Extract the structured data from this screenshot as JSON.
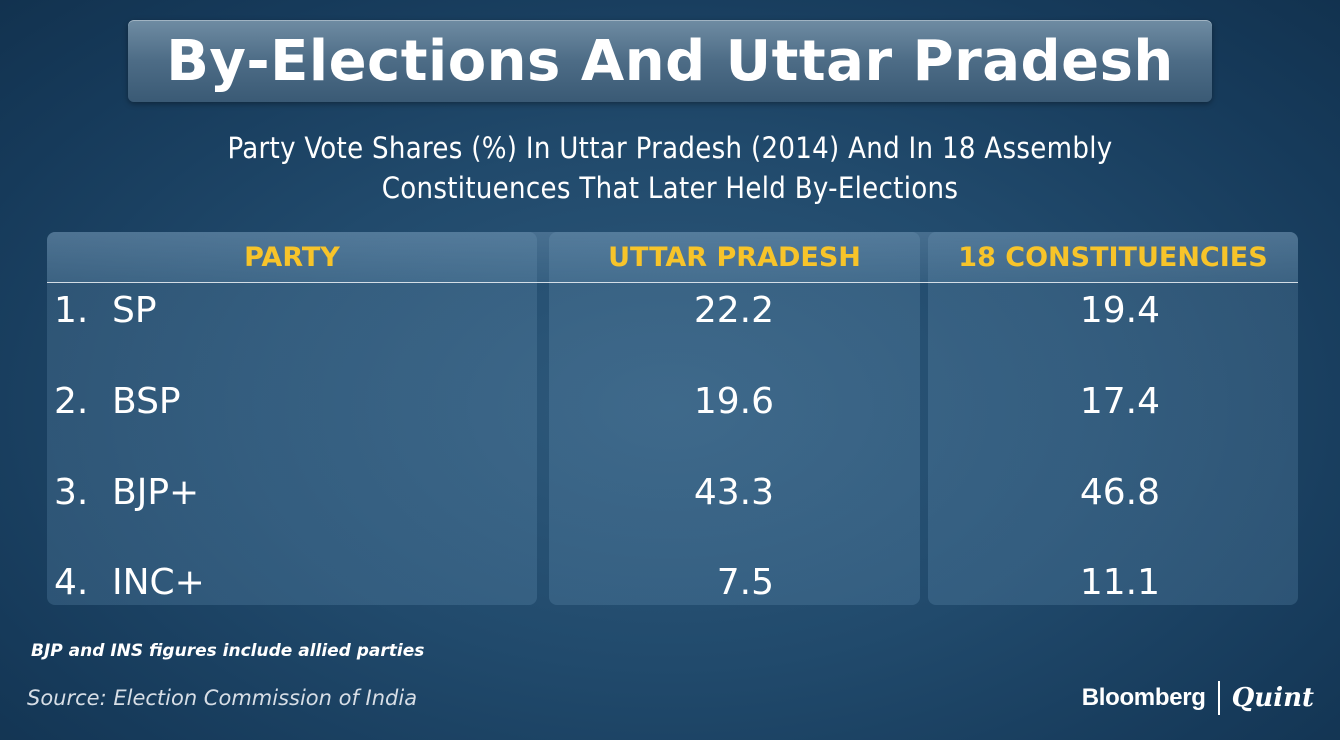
{
  "title": "By-Elections And Uttar Pradesh",
  "subtitle_line1": "Party Vote Shares (%) In Uttar Pradesh (2014) And In 18 Assembly",
  "subtitle_line2": "Constituences That Later Held By-Elections",
  "colors": {
    "header_text": "#f7c42a",
    "background": "#214a6c",
    "text": "#ffffff"
  },
  "chart_data": {
    "type": "table",
    "title": "Party Vote Shares (%) In Uttar Pradesh (2014) And In 18 Assembly Constituences That Later Held By-Elections",
    "columns": [
      "PARTY",
      "UTTAR PRADESH",
      "18 CONSTITUENCIES"
    ],
    "rows": [
      {
        "num": "1.",
        "party": "SP",
        "uttar_pradesh": "22.2",
        "constituencies_18": "19.4"
      },
      {
        "num": "2.",
        "party": "BSP",
        "uttar_pradesh": "19.6",
        "constituencies_18": "17.4"
      },
      {
        "num": "3.",
        "party": "BJP+",
        "uttar_pradesh": "43.3",
        "constituencies_18": "46.8"
      },
      {
        "num": "4.",
        "party": "INC+",
        "uttar_pradesh": "7.5",
        "constituencies_18": "11.1"
      }
    ]
  },
  "note": "BJP and INS figures include allied parties",
  "source": "Source: Election Commission of India",
  "logo": {
    "left": "Bloomberg",
    "right": "Quint"
  }
}
